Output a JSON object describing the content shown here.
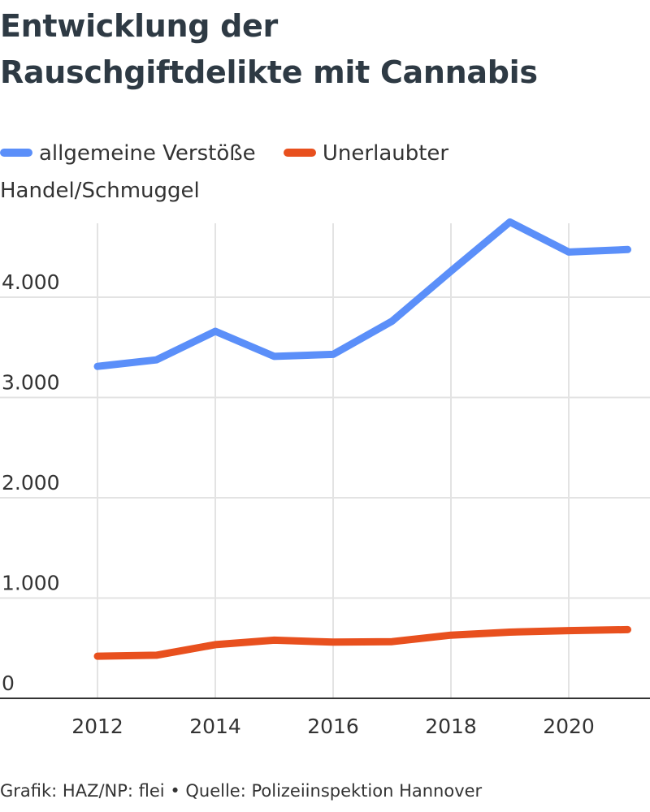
{
  "title": {
    "line1": "Entwicklung der",
    "line2": "Rauschgiftdelikte mit Cannabis"
  },
  "source": "Grafik: HAZ/NP: flei • Quelle: Polizeiinspektion Hannover",
  "chart_data": {
    "type": "line",
    "title": "Entwicklung der Rauschgiftdelikte mit Cannabis",
    "x": [
      2012,
      2013,
      2014,
      2015,
      2016,
      2017,
      2018,
      2019,
      2020,
      2021
    ],
    "x_ticks": [
      2012,
      2014,
      2016,
      2018,
      2020
    ],
    "x_tick_labels": [
      "2012",
      "2014",
      "2016",
      "2018",
      "2020"
    ],
    "y_ticks": [
      0,
      1000,
      2000,
      3000,
      4000
    ],
    "y_tick_labels": [
      "0",
      "1.000",
      "2.000",
      "3.000",
      "4.000"
    ],
    "ylim": [
      0,
      4750
    ],
    "grid": true,
    "legend_position": "top-left",
    "series": [
      {
        "name": "allgemeine Verstöße",
        "color": "#5b8ff9",
        "values": [
          3310,
          3375,
          3660,
          3410,
          3430,
          3760,
          4260,
          4750,
          4450,
          4475
        ]
      },
      {
        "name": "Unerlaubter Handel/Schmuggel",
        "color": "#e8501e",
        "values": [
          420,
          430,
          535,
          580,
          560,
          565,
          630,
          660,
          675,
          685
        ]
      }
    ]
  }
}
